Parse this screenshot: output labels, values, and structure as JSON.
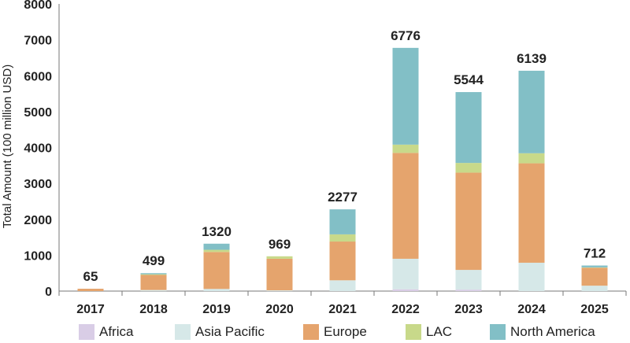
{
  "chart_data": {
    "type": "bar",
    "stacked": true,
    "title": "",
    "xlabel": "",
    "ylabel": "Total Amount (100 million USD)",
    "ylim": [
      0,
      8000
    ],
    "yticks": [
      "0",
      "1000",
      "2000",
      "3000",
      "4000",
      "5000",
      "6000",
      "7000",
      "8000"
    ],
    "grid": false,
    "legend_position": "bottom",
    "categories": [
      "2017",
      "2018",
      "2019",
      "2020",
      "2021",
      "2022",
      "2023",
      "2024",
      "2025"
    ],
    "totals": [
      "65",
      "499",
      "1320",
      "969",
      "2277",
      "6776",
      "5544",
      "6139",
      "712"
    ],
    "series": [
      {
        "name": "Africa",
        "color": "#d9cde6",
        "values": [
          0,
          0,
          0,
          0,
          0,
          50,
          40,
          0,
          0
        ]
      },
      {
        "name": "Asia Pacific",
        "color": "#d6e8e8",
        "values": [
          0,
          30,
          60,
          20,
          300,
          850,
          550,
          790,
          150
        ]
      },
      {
        "name": "Europe",
        "color": "#e5a46d",
        "values": [
          65,
          420,
          1030,
          880,
          1080,
          2950,
          2710,
          2770,
          500
        ]
      },
      {
        "name": "LAC",
        "color": "#c8d98a",
        "values": [
          0,
          19,
          60,
          69,
          200,
          230,
          270,
          280,
          10
        ]
      },
      {
        "name": "North America",
        "color": "#82bfc6",
        "values": [
          0,
          30,
          170,
          0,
          697,
          2696,
          1974,
          2299,
          52
        ]
      }
    ]
  }
}
